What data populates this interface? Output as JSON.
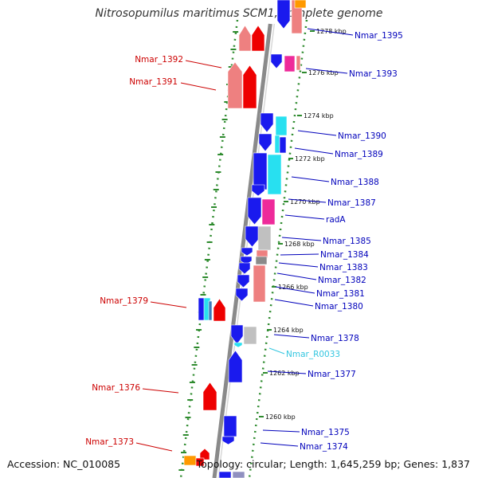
{
  "title": "Nitrosopumilus maritimus SCM1, complete genome",
  "footer": {
    "accession": "Accession: NC_010085",
    "topology": "Topology: circular; Length: 1,645,259 bp; Genes: 1,837"
  },
  "colors": {
    "backbone": "#8a8a8a",
    "grid": "#2e8b2e",
    "left_label": "#cc0000",
    "right_label": "#0000bb",
    "rna_label": "#33c6e0",
    "red": "#ee0000",
    "pink_red": "#ee8080",
    "blue": "#1a1aee",
    "cyan": "#28e0f0",
    "magenta": "#ee2a9a",
    "grey": "#c0c0c0",
    "orange": "#ff9900"
  },
  "kbp_ticks": [
    "1278 kbp",
    "1276 kbp",
    "1274 kbp",
    "1272 kbp",
    "1270 kbp",
    "1268 kbp",
    "1266 kbp",
    "1264 kbp",
    "1262 kbp",
    "1260 kbp"
  ],
  "left_labels": [
    "Nmar_1392",
    "Nmar_1391",
    "Nmar_1379",
    "Nmar_1376",
    "Nmar_1373"
  ],
  "right_labels": [
    "Nmar_1395",
    "Nmar_1393",
    "Nmar_1390",
    "Nmar_1389",
    "Nmar_1388",
    "Nmar_1387",
    "radA",
    "Nmar_1385",
    "Nmar_1384",
    "Nmar_1383",
    "Nmar_1382",
    "Nmar_1381",
    "Nmar_1380",
    "Nmar_1378",
    "Nmar_R0033",
    "Nmar_1377",
    "Nmar_1375",
    "Nmar_1374"
  ]
}
